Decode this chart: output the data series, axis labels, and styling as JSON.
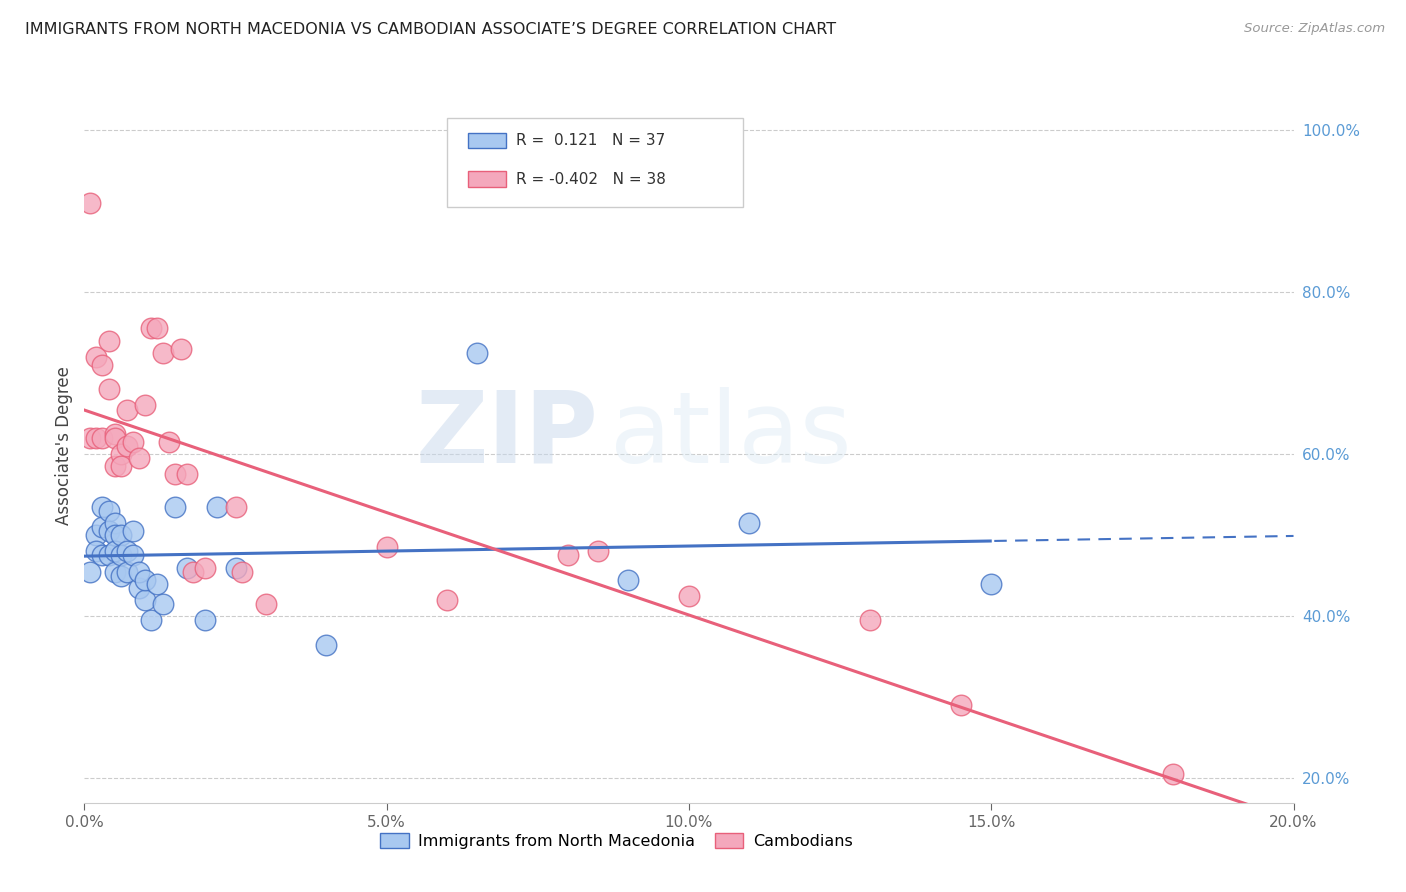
{
  "title": "IMMIGRANTS FROM NORTH MACEDONIA VS CAMBODIAN ASSOCIATE’S DEGREE CORRELATION CHART",
  "source": "Source: ZipAtlas.com",
  "ylabel": "Associate's Degree",
  "xlim": [
    0.0,
    0.2
  ],
  "ylim": [
    0.17,
    1.05
  ],
  "right_yticks": [
    0.2,
    0.4,
    0.6,
    0.8,
    1.0
  ],
  "right_yticklabels": [
    "20.0%",
    "40.0%",
    "60.0%",
    "80.0%",
    "100.0%"
  ],
  "xticks": [
    0.0,
    0.05,
    0.1,
    0.15,
    0.2
  ],
  "xticklabels": [
    "0.0%",
    "5.0%",
    "10.0%",
    "15.0%",
    "20.0%"
  ],
  "blue_R": 0.121,
  "blue_N": 37,
  "pink_R": -0.402,
  "pink_N": 38,
  "blue_color": "#A8C8F0",
  "pink_color": "#F4A8BC",
  "blue_line_color": "#4472C4",
  "pink_line_color": "#E8607A",
  "watermark_zip": "ZIP",
  "watermark_atlas": "atlas",
  "blue_x": [
    0.001,
    0.002,
    0.002,
    0.003,
    0.003,
    0.003,
    0.004,
    0.004,
    0.004,
    0.005,
    0.005,
    0.005,
    0.005,
    0.006,
    0.006,
    0.006,
    0.007,
    0.007,
    0.008,
    0.008,
    0.009,
    0.009,
    0.01,
    0.01,
    0.011,
    0.012,
    0.013,
    0.015,
    0.017,
    0.02,
    0.022,
    0.025,
    0.04,
    0.065,
    0.09,
    0.11,
    0.15
  ],
  "blue_y": [
    0.455,
    0.5,
    0.48,
    0.535,
    0.51,
    0.475,
    0.53,
    0.505,
    0.475,
    0.515,
    0.5,
    0.48,
    0.455,
    0.5,
    0.475,
    0.45,
    0.455,
    0.48,
    0.475,
    0.505,
    0.435,
    0.455,
    0.42,
    0.445,
    0.395,
    0.44,
    0.415,
    0.535,
    0.46,
    0.395,
    0.535,
    0.46,
    0.365,
    0.725,
    0.445,
    0.515,
    0.44
  ],
  "pink_x": [
    0.001,
    0.001,
    0.002,
    0.002,
    0.003,
    0.003,
    0.004,
    0.004,
    0.005,
    0.005,
    0.005,
    0.006,
    0.006,
    0.007,
    0.007,
    0.008,
    0.009,
    0.01,
    0.011,
    0.012,
    0.013,
    0.014,
    0.015,
    0.016,
    0.017,
    0.018,
    0.02,
    0.025,
    0.026,
    0.03,
    0.05,
    0.06,
    0.08,
    0.085,
    0.1,
    0.13,
    0.145,
    0.18
  ],
  "pink_y": [
    0.91,
    0.62,
    0.72,
    0.62,
    0.71,
    0.62,
    0.74,
    0.68,
    0.585,
    0.625,
    0.62,
    0.6,
    0.585,
    0.655,
    0.61,
    0.615,
    0.595,
    0.66,
    0.755,
    0.755,
    0.725,
    0.615,
    0.575,
    0.73,
    0.575,
    0.455,
    0.46,
    0.535,
    0.455,
    0.415,
    0.485,
    0.42,
    0.475,
    0.48,
    0.425,
    0.395,
    0.29,
    0.205
  ]
}
